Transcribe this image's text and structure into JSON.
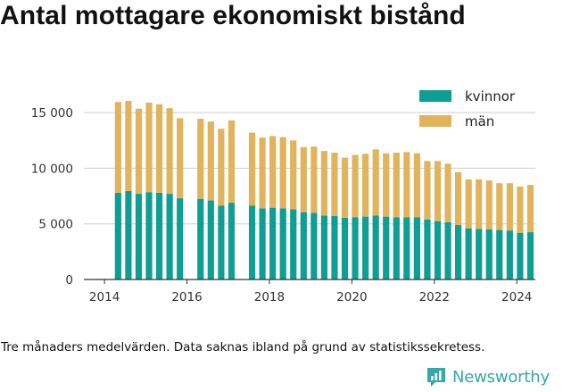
{
  "title": "Antal mottagare ekonomiskt bistånd",
  "caption": "Tre månaders medelvärden. Data saknas ibland på grund av statistikssekretess.",
  "logo": {
    "text": "Newsworthy",
    "icon": "newsworthy-logo-icon",
    "color": "#36a8a8"
  },
  "colors": {
    "kvinnor": "#0e9e94",
    "man": "#e1b35c",
    "axis": "#333333",
    "grid": "#cfcfcf"
  },
  "chart_data": {
    "type": "bar",
    "stacked": true,
    "title": "Antal mottagare ekonomiskt bistånd",
    "xlabel": "",
    "ylabel": "",
    "ylim": [
      0,
      17500
    ],
    "xlim": [
      2013.5,
      2024.45
    ],
    "grid": "horizontal",
    "legend_position": "top-right",
    "x_ticks": [
      2014,
      2016,
      2018,
      2020,
      2022,
      2024
    ],
    "x_tick_labels": [
      "2014",
      "2016",
      "2018",
      "2020",
      "2022",
      "2024"
    ],
    "y_ticks": [
      0,
      5000,
      10000,
      15000
    ],
    "y_tick_labels": [
      "0",
      "5 000",
      "10 000",
      "15 000"
    ],
    "x": [
      2014.33,
      2014.58,
      2014.83,
      2015.08,
      2015.33,
      2015.58,
      2015.83,
      2016.33,
      2016.58,
      2016.83,
      2017.08,
      2017.58,
      2017.83,
      2018.08,
      2018.33,
      2018.58,
      2018.83,
      2019.08,
      2019.33,
      2019.58,
      2019.83,
      2020.08,
      2020.33,
      2020.58,
      2020.83,
      2021.08,
      2021.33,
      2021.58,
      2021.83,
      2022.08,
      2022.33,
      2022.58,
      2022.83,
      2023.08,
      2023.33,
      2023.58,
      2023.83,
      2024.08,
      2024.33
    ],
    "series": [
      {
        "name": "kvinnor",
        "values": [
          7800,
          7950,
          7700,
          7850,
          7800,
          7700,
          7300,
          7250,
          7100,
          6650,
          6900,
          6650,
          6400,
          6450,
          6400,
          6300,
          6050,
          6000,
          5750,
          5700,
          5550,
          5600,
          5650,
          5750,
          5650,
          5600,
          5600,
          5600,
          5400,
          5250,
          5150,
          4900,
          4600,
          4550,
          4500,
          4450,
          4400,
          4200,
          4250
        ]
      },
      {
        "name": "män",
        "values": [
          8150,
          8100,
          7650,
          8050,
          7950,
          7700,
          7200,
          7200,
          7100,
          6900,
          7400,
          6550,
          6350,
          6450,
          6400,
          6200,
          5850,
          5950,
          5800,
          5700,
          5400,
          5600,
          5650,
          5950,
          5700,
          5800,
          5850,
          5750,
          5250,
          5400,
          5250,
          4750,
          4400,
          4450,
          4400,
          4200,
          4250,
          4150,
          4250
        ]
      }
    ]
  }
}
